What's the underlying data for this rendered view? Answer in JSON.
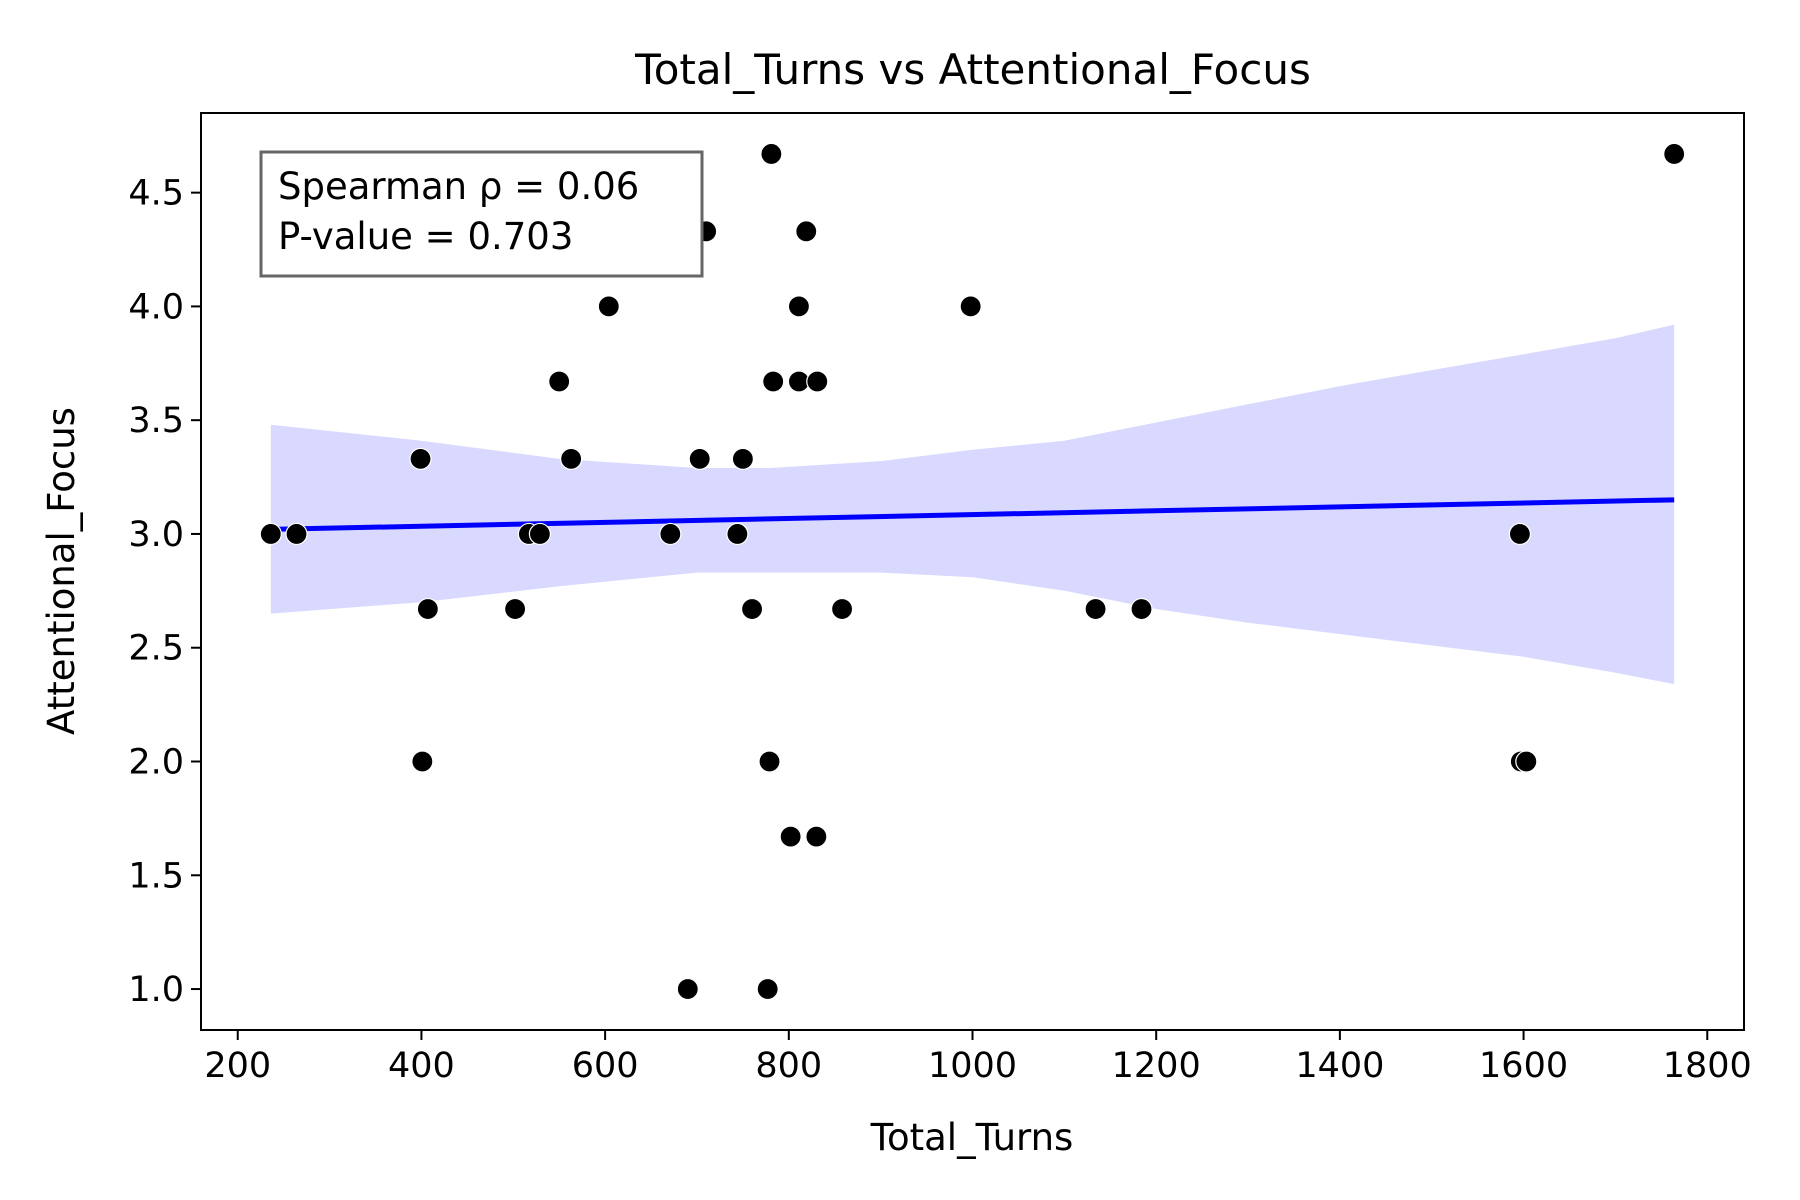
{
  "chart_data": {
    "type": "scatter",
    "title": "Total_Turns vs Attentional_Focus",
    "xlabel": "Total_Turns",
    "ylabel": "Attentional_Focus",
    "xlim": [
      160,
      1840
    ],
    "ylim": [
      0.82,
      4.85
    ],
    "x_ticks": [
      200,
      400,
      600,
      800,
      1000,
      1200,
      1400,
      1600,
      1800
    ],
    "y_ticks": [
      1.0,
      1.5,
      2.0,
      2.5,
      3.0,
      3.5,
      4.0,
      4.5
    ],
    "x_tick_labels": [
      "200",
      "400",
      "600",
      "800",
      "1000",
      "1200",
      "1400",
      "1600",
      "1800"
    ],
    "y_tick_labels": [
      "1.0",
      "1.5",
      "2.0",
      "2.5",
      "3.0",
      "3.5",
      "4.0",
      "4.5"
    ],
    "grid": false,
    "point_color": "#000000",
    "line_color": "#0000ff",
    "band_color": "#d9d9ff",
    "points": [
      {
        "x": 236,
        "y": 3.0
      },
      {
        "x": 264,
        "y": 3.0
      },
      {
        "x": 399,
        "y": 3.33
      },
      {
        "x": 401,
        "y": 2.0
      },
      {
        "x": 407,
        "y": 2.67
      },
      {
        "x": 502,
        "y": 2.67
      },
      {
        "x": 517,
        "y": 3.0
      },
      {
        "x": 529,
        "y": 3.0
      },
      {
        "x": 550,
        "y": 3.67
      },
      {
        "x": 563,
        "y": 3.33
      },
      {
        "x": 604,
        "y": 4.0
      },
      {
        "x": 671,
        "y": 3.0
      },
      {
        "x": 690,
        "y": 1.0
      },
      {
        "x": 703,
        "y": 3.33
      },
      {
        "x": 710,
        "y": 4.33
      },
      {
        "x": 744,
        "y": 3.0
      },
      {
        "x": 750,
        "y": 3.33
      },
      {
        "x": 760,
        "y": 2.67
      },
      {
        "x": 777,
        "y": 1.0
      },
      {
        "x": 779,
        "y": 2.0
      },
      {
        "x": 781,
        "y": 4.67
      },
      {
        "x": 783,
        "y": 3.67
      },
      {
        "x": 802,
        "y": 1.67
      },
      {
        "x": 811,
        "y": 3.67
      },
      {
        "x": 811,
        "y": 4.0
      },
      {
        "x": 819,
        "y": 4.33
      },
      {
        "x": 830,
        "y": 1.67
      },
      {
        "x": 831,
        "y": 3.67
      },
      {
        "x": 858,
        "y": 2.67
      },
      {
        "x": 998,
        "y": 4.0
      },
      {
        "x": 1134,
        "y": 2.67
      },
      {
        "x": 1184,
        "y": 2.67
      },
      {
        "x": 1596,
        "y": 3.0
      },
      {
        "x": 1597,
        "y": 2.0
      },
      {
        "x": 1603,
        "y": 2.0
      },
      {
        "x": 1764,
        "y": 4.67
      }
    ],
    "regression": {
      "x": [
        236,
        1764
      ],
      "y": [
        3.02,
        3.15
      ]
    },
    "confidence_band": {
      "x": [
        236,
        400,
        550,
        700,
        780,
        900,
        1000,
        1100,
        1200,
        1300,
        1400,
        1500,
        1600,
        1700,
        1764
      ],
      "upper": [
        3.48,
        3.41,
        3.33,
        3.29,
        3.29,
        3.32,
        3.37,
        3.41,
        3.49,
        3.57,
        3.65,
        3.72,
        3.79,
        3.86,
        3.92
      ],
      "lower": [
        2.65,
        2.7,
        2.77,
        2.83,
        2.83,
        2.83,
        2.81,
        2.75,
        2.67,
        2.61,
        2.56,
        2.51,
        2.46,
        2.39,
        2.34
      ]
    },
    "annotation": {
      "lines": [
        "Spearman ρ = 0.06",
        "P-value = 0.703"
      ],
      "placement": "top-left"
    }
  }
}
